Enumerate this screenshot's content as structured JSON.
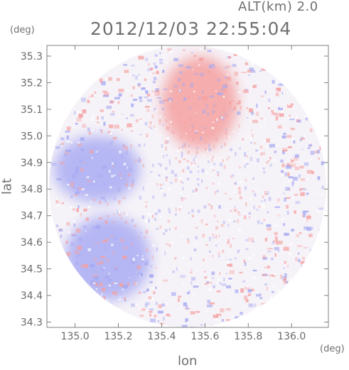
{
  "header": {
    "altitude": "ALT(km) 2.0",
    "datetime": "2012/12/03 22:55:04"
  },
  "axes": {
    "x_unit": "(deg)",
    "y_unit": "(deg)",
    "x_label": "lon",
    "y_label": "lat"
  },
  "chart_data": {
    "type": "heatmap",
    "title": "2012/12/03 22:55:04",
    "xlabel": "lon",
    "ylabel": "lat",
    "x_ticks": [
      "135.0",
      "135.2",
      "135.4",
      "135.6",
      "135.8",
      "136.0"
    ],
    "x_tick_values": [
      135.0,
      135.2,
      135.4,
      135.6,
      135.8,
      136.0
    ],
    "y_ticks": [
      "35.3",
      "35.2",
      "35.1",
      "35.0",
      "34.9",
      "34.8",
      "34.7",
      "34.6",
      "34.5",
      "34.4",
      "34.3"
    ],
    "y_tick_values": [
      35.3,
      35.2,
      35.1,
      35.0,
      34.9,
      34.8,
      34.7,
      34.6,
      34.5,
      34.4,
      34.3
    ],
    "xlim": [
      134.87,
      136.17
    ],
    "ylim": [
      34.28,
      35.34
    ],
    "radar_center": {
      "lon": 135.52,
      "lat": 34.81
    },
    "coverage_radius_deg": {
      "lon": 0.64,
      "lat": 0.53
    },
    "colors": {
      "positive": "#f4a0a0",
      "negative": "#a5a8f2",
      "neutral": "#f6f3f8",
      "frame": "#808080"
    },
    "regions": [
      {
        "name": "northern-red-area",
        "sign": "positive",
        "lon": [
          135.4,
          135.75
        ],
        "lat": [
          34.95,
          35.3
        ]
      },
      {
        "name": "southwest-blue-area",
        "sign": "negative",
        "lon": [
          134.95,
          135.35
        ],
        "lat": [
          34.38,
          34.7
        ]
      },
      {
        "name": "western-blue-band",
        "sign": "negative",
        "lon": [
          134.9,
          135.3
        ],
        "lat": [
          34.75,
          35.0
        ]
      }
    ],
    "grid": false
  }
}
